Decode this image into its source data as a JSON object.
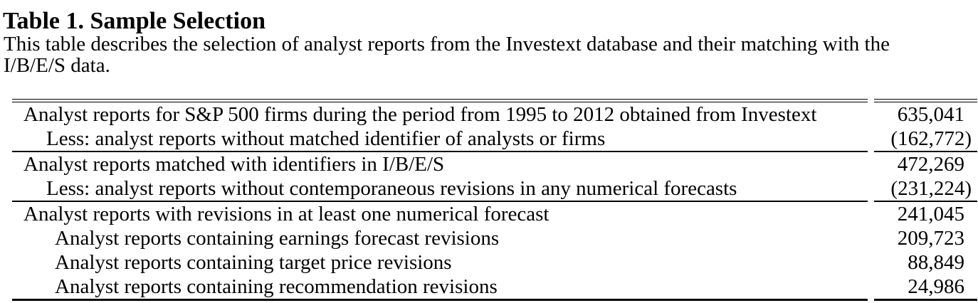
{
  "title": "Table 1. Sample Selection",
  "intro": {
    "lines": [
      "This table describes the selection of analyst reports from the Investext database and their matching with the",
      "I/B/E/S data."
    ]
  },
  "table": {
    "sections": [
      {
        "rows": [
          {
            "label": "Analyst reports for S&P 500 firms during the period from 1995 to 2012 obtained from Investext",
            "value": "635,041"
          },
          {
            "label": "Less: analyst reports without matched identifier of analysts or firms",
            "value": "(162,772)"
          }
        ]
      },
      {
        "rows": [
          {
            "label": "Analyst reports matched with identifiers in I/B/E/S",
            "value": "472,269"
          },
          {
            "label": "Less: analyst reports without contemporaneous revisions in any numerical forecasts",
            "value": "(231,224)"
          }
        ]
      },
      {
        "rows": [
          {
            "label": "Analyst reports with revisions in at least one numerical forecast",
            "value": "241,045"
          },
          {
            "label": "Analyst reports containing earnings forecast revisions",
            "value": "209,723"
          },
          {
            "label": "Analyst reports containing target price revisions",
            "value": "88,849"
          },
          {
            "label": "Analyst reports containing recommendation revisions",
            "value": "24,986"
          }
        ]
      }
    ]
  },
  "colors": {
    "text": "#000000",
    "rule": "#000000",
    "background": "#ffffff"
  }
}
